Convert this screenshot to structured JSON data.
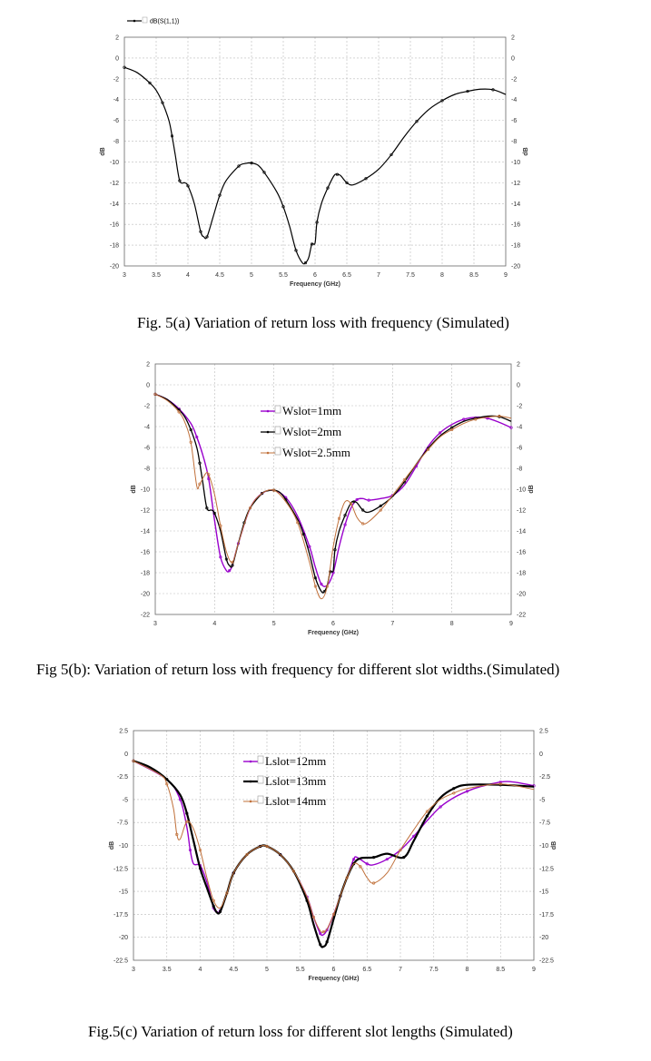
{
  "captions": {
    "fig_a": "Fig. 5(a) Variation of return loss with frequency (Simulated)",
    "fig_b": "Fig 5(b): Variation of return loss with frequency for different slot widths.(Simulated)",
    "fig_c": "Fig.5(c) Variation of return loss for different slot lengths (Simulated)"
  },
  "chart_data": [
    {
      "type": "line",
      "title": "",
      "xlabel": "Frequency (GHz)",
      "ylabel": "dB",
      "xlim": [
        3,
        9
      ],
      "ylim": [
        -20,
        2
      ],
      "xticks": [
        3,
        3.5,
        4,
        4.5,
        5,
        5.5,
        6,
        6.5,
        7,
        7.5,
        8,
        8.5,
        9
      ],
      "yticks": [
        2,
        0,
        -2,
        -4,
        -6,
        -8,
        -10,
        -12,
        -14,
        -16,
        -18,
        -20
      ],
      "grid": true,
      "legend_position": "top-left-outside",
      "legend_style": "small",
      "series": [
        {
          "name": "dB(S(1,1))",
          "color": "#000000",
          "width": 1.2,
          "x": [
            3,
            3.2,
            3.4,
            3.5,
            3.6,
            3.7,
            3.75,
            3.8,
            3.87,
            3.95,
            4.0,
            4.1,
            4.2,
            4.25,
            4.3,
            4.4,
            4.5,
            4.6,
            4.8,
            4.9,
            5,
            5.1,
            5.2,
            5.4,
            5.5,
            5.6,
            5.7,
            5.8,
            5.85,
            5.9,
            5.95,
            6.0,
            6.03,
            6.1,
            6.2,
            6.3,
            6.35,
            6.4,
            6.5,
            6.6,
            6.8,
            7.0,
            7.2,
            7.4,
            7.6,
            7.8,
            8,
            8.2,
            8.4,
            8.6,
            8.8,
            9
          ],
          "y": [
            -0.9,
            -1.4,
            -2.4,
            -3.1,
            -4.3,
            -6,
            -7.5,
            -9.3,
            -11.8,
            -12,
            -12.3,
            -14,
            -16.7,
            -17.2,
            -17.2,
            -15.2,
            -13.2,
            -11.8,
            -10.4,
            -10.15,
            -10.1,
            -10.3,
            -11,
            -12.9,
            -14.3,
            -16.2,
            -18.5,
            -19.7,
            -19.7,
            -19.2,
            -17.9,
            -17.8,
            -15.8,
            -14,
            -12.5,
            -11.3,
            -11.2,
            -11.3,
            -12,
            -12.2,
            -11.6,
            -10.7,
            -9.3,
            -7.6,
            -6.1,
            -4.9,
            -4.1,
            -3.5,
            -3.2,
            -3,
            -3.05,
            -3.5
          ]
        }
      ]
    },
    {
      "type": "line",
      "title": "",
      "xlabel": "Frequency (GHz)",
      "ylabel": "dB",
      "xlim": [
        3,
        9
      ],
      "ylim": [
        -22,
        2
      ],
      "xticks": [
        3,
        4,
        5,
        6,
        7,
        8,
        9
      ],
      "yticks": [
        2,
        0,
        -2,
        -4,
        -6,
        -8,
        -10,
        -12,
        -14,
        -16,
        -18,
        -20,
        -22
      ],
      "grid": true,
      "legend_position": "upper-center",
      "legend_style": "large",
      "series": [
        {
          "name": "Wslot=1mm",
          "color": "#9900cc",
          "width": 1.4,
          "x": [
            3,
            3.2,
            3.4,
            3.6,
            3.7,
            3.8,
            3.9,
            4.0,
            4.1,
            4.2,
            4.25,
            4.3,
            4.4,
            4.6,
            4.8,
            5,
            5.2,
            5.4,
            5.6,
            5.7,
            5.8,
            5.9,
            6.0,
            6.1,
            6.2,
            6.3,
            6.4,
            6.5,
            6.6,
            6.8,
            7,
            7.2,
            7.4,
            7.6,
            7.8,
            8,
            8.2,
            8.4,
            8.6,
            8.8,
            9
          ],
          "y": [
            -0.9,
            -1.4,
            -2.3,
            -3.7,
            -5,
            -6.7,
            -9,
            -13,
            -16.5,
            -17.8,
            -17.8,
            -17.3,
            -15.2,
            -11.8,
            -10.4,
            -10.1,
            -10.8,
            -12.6,
            -15.5,
            -17.5,
            -19.1,
            -19.2,
            -18,
            -15.5,
            -13.4,
            -11.8,
            -11,
            -10.9,
            -11.05,
            -10.9,
            -10.6,
            -9.6,
            -7.8,
            -5.9,
            -4.6,
            -3.8,
            -3.3,
            -3.1,
            -3.2,
            -3.6,
            -4.1
          ]
        },
        {
          "name": "Wslot=2mm",
          "color": "#000000",
          "width": 1.3,
          "x": [
            3,
            3.2,
            3.4,
            3.5,
            3.6,
            3.7,
            3.75,
            3.8,
            3.87,
            3.95,
            4.0,
            4.1,
            4.2,
            4.25,
            4.3,
            4.4,
            4.5,
            4.6,
            4.8,
            4.9,
            5,
            5.1,
            5.2,
            5.4,
            5.5,
            5.6,
            5.7,
            5.8,
            5.85,
            5.9,
            5.95,
            6.0,
            6.03,
            6.1,
            6.2,
            6.3,
            6.35,
            6.4,
            6.5,
            6.6,
            6.8,
            7.0,
            7.2,
            7.4,
            7.6,
            7.8,
            8,
            8.2,
            8.4,
            8.6,
            8.8,
            9
          ],
          "y": [
            -0.9,
            -1.4,
            -2.4,
            -3.1,
            -4.3,
            -6,
            -7.5,
            -9.3,
            -11.8,
            -12,
            -12.3,
            -14,
            -16.7,
            -17.3,
            -17.3,
            -15.2,
            -13.2,
            -11.8,
            -10.4,
            -10.15,
            -10.1,
            -10.3,
            -11,
            -12.9,
            -14.3,
            -16.2,
            -18.5,
            -19.8,
            -19.8,
            -19.2,
            -17.9,
            -17.8,
            -15.8,
            -14,
            -12.5,
            -11.3,
            -11.2,
            -11.3,
            -12,
            -12.2,
            -11.6,
            -10.7,
            -9.3,
            -7.6,
            -6.1,
            -4.9,
            -4.1,
            -3.5,
            -3.2,
            -3,
            -3.05,
            -3.5
          ]
        },
        {
          "name": "Wslot=2.5mm",
          "color": "#c0703a",
          "width": 1.0,
          "x": [
            3,
            3.2,
            3.4,
            3.5,
            3.6,
            3.7,
            3.75,
            3.85,
            3.9,
            4.0,
            4.1,
            4.2,
            4.3,
            4.4,
            4.6,
            4.8,
            5,
            5.2,
            5.4,
            5.6,
            5.7,
            5.8,
            5.9,
            6.0,
            6.1,
            6.2,
            6.3,
            6.4,
            6.5,
            6.6,
            6.8,
            7,
            7.2,
            7.4,
            7.6,
            7.8,
            8,
            8.2,
            8.4,
            8.6,
            8.8,
            9
          ],
          "y": [
            -0.9,
            -1.5,
            -2.6,
            -3.6,
            -5.5,
            -9.7,
            -9.5,
            -8.5,
            -8.6,
            -10.5,
            -13.5,
            -16,
            -17,
            -15.2,
            -11.8,
            -10.4,
            -10.1,
            -11.2,
            -13.2,
            -17,
            -19.3,
            -20.5,
            -19.3,
            -15.5,
            -12.8,
            -11.2,
            -11.4,
            -12.7,
            -13.3,
            -13.1,
            -12,
            -10.6,
            -9.1,
            -7.6,
            -6.2,
            -5,
            -4.3,
            -3.7,
            -3.3,
            -3.1,
            -3,
            -3.2
          ]
        }
      ]
    },
    {
      "type": "line",
      "title": "",
      "xlabel": "Frequency (GHz)",
      "ylabel": "dB",
      "xlim": [
        3,
        9
      ],
      "ylim": [
        -22.5,
        2.5
      ],
      "xticks": [
        3,
        3.5,
        4,
        4.5,
        5,
        5.5,
        6,
        6.5,
        7,
        7.5,
        8,
        8.5,
        9
      ],
      "yticks": [
        2.5,
        0,
        -2.5,
        -5,
        -7.5,
        -10,
        -12.5,
        -15,
        -17.5,
        -20,
        -22.5
      ],
      "grid": true,
      "legend_position": "upper-center",
      "legend_style": "large",
      "series": [
        {
          "name": "Lslot=12mm",
          "color": "#9900cc",
          "width": 1.4,
          "x": [
            3,
            3.5,
            3.7,
            3.8,
            3.85,
            3.9,
            4.0,
            4.1,
            4.2,
            4.25,
            4.3,
            4.4,
            4.5,
            4.7,
            4.9,
            5,
            5.2,
            5.4,
            5.6,
            5.7,
            5.8,
            5.85,
            5.9,
            6.0,
            6.1,
            6.2,
            6.3,
            6.35,
            6.5,
            6.6,
            6.8,
            7,
            7.2,
            7.4,
            7.6,
            7.8,
            8,
            8.2,
            8.5,
            8.7,
            9
          ],
          "y": [
            -0.8,
            -2.8,
            -5,
            -8,
            -10.5,
            -12,
            -12.2,
            -14,
            -16.8,
            -17.2,
            -17.1,
            -15.2,
            -13,
            -11,
            -10.1,
            -10.1,
            -11,
            -12.8,
            -15.6,
            -17.8,
            -19.6,
            -19.7,
            -19.2,
            -17.5,
            -15.5,
            -13.5,
            -11.5,
            -11.3,
            -12,
            -12.1,
            -11.5,
            -10.5,
            -9,
            -7.3,
            -5.8,
            -4.8,
            -4.1,
            -3.6,
            -3.1,
            -3.1,
            -3.5
          ]
        },
        {
          "name": "Lslot=13mm",
          "color": "#000000",
          "width": 2.2,
          "x": [
            3,
            3.25,
            3.5,
            3.7,
            3.8,
            3.9,
            4.0,
            4.1,
            4.2,
            4.25,
            4.3,
            4.4,
            4.5,
            4.7,
            4.9,
            5,
            5.2,
            5.4,
            5.6,
            5.7,
            5.8,
            5.85,
            5.9,
            6.0,
            6.1,
            6.2,
            6.3,
            6.4,
            6.6,
            6.8,
            7.05,
            7.2,
            7.4,
            7.6,
            7.8,
            8,
            8.5,
            9
          ],
          "y": [
            -0.8,
            -1.5,
            -2.8,
            -4.5,
            -6.5,
            -9.5,
            -12.5,
            -14.6,
            -16.6,
            -17.3,
            -17.2,
            -15.2,
            -13,
            -11,
            -10.1,
            -10.1,
            -11,
            -12.8,
            -16,
            -18.6,
            -20.8,
            -21,
            -20.5,
            -18,
            -15.5,
            -13.5,
            -12,
            -11.4,
            -11.3,
            -10.9,
            -11.3,
            -9.5,
            -6.8,
            -4.8,
            -3.8,
            -3.4,
            -3.4,
            -3.6
          ]
        },
        {
          "name": "Lslot=14mm",
          "color": "#c0703a",
          "width": 1.0,
          "x": [
            3,
            3.4,
            3.5,
            3.6,
            3.65,
            3.7,
            3.8,
            3.9,
            4.0,
            4.1,
            4.2,
            4.3,
            4.4,
            4.5,
            4.7,
            4.9,
            5,
            5.2,
            5.4,
            5.6,
            5.7,
            5.8,
            5.85,
            5.9,
            6.0,
            6.1,
            6.2,
            6.3,
            6.4,
            6.5,
            6.6,
            6.8,
            7,
            7.2,
            7.4,
            7.6,
            7.8,
            8,
            8.5,
            9
          ],
          "y": [
            -0.8,
            -2.3,
            -3.3,
            -6,
            -8.8,
            -9.3,
            -7.4,
            -8.2,
            -10.5,
            -13.5,
            -16,
            -16.8,
            -15.2,
            -13,
            -11,
            -10.1,
            -10.1,
            -11,
            -12.8,
            -15.6,
            -17.8,
            -19.3,
            -19.4,
            -19.1,
            -17.5,
            -15.5,
            -13.5,
            -12,
            -12.3,
            -13.5,
            -14.1,
            -13,
            -10.5,
            -8.3,
            -6.3,
            -5,
            -4.3,
            -3.8,
            -3.3,
            -3.9
          ]
        }
      ]
    }
  ]
}
